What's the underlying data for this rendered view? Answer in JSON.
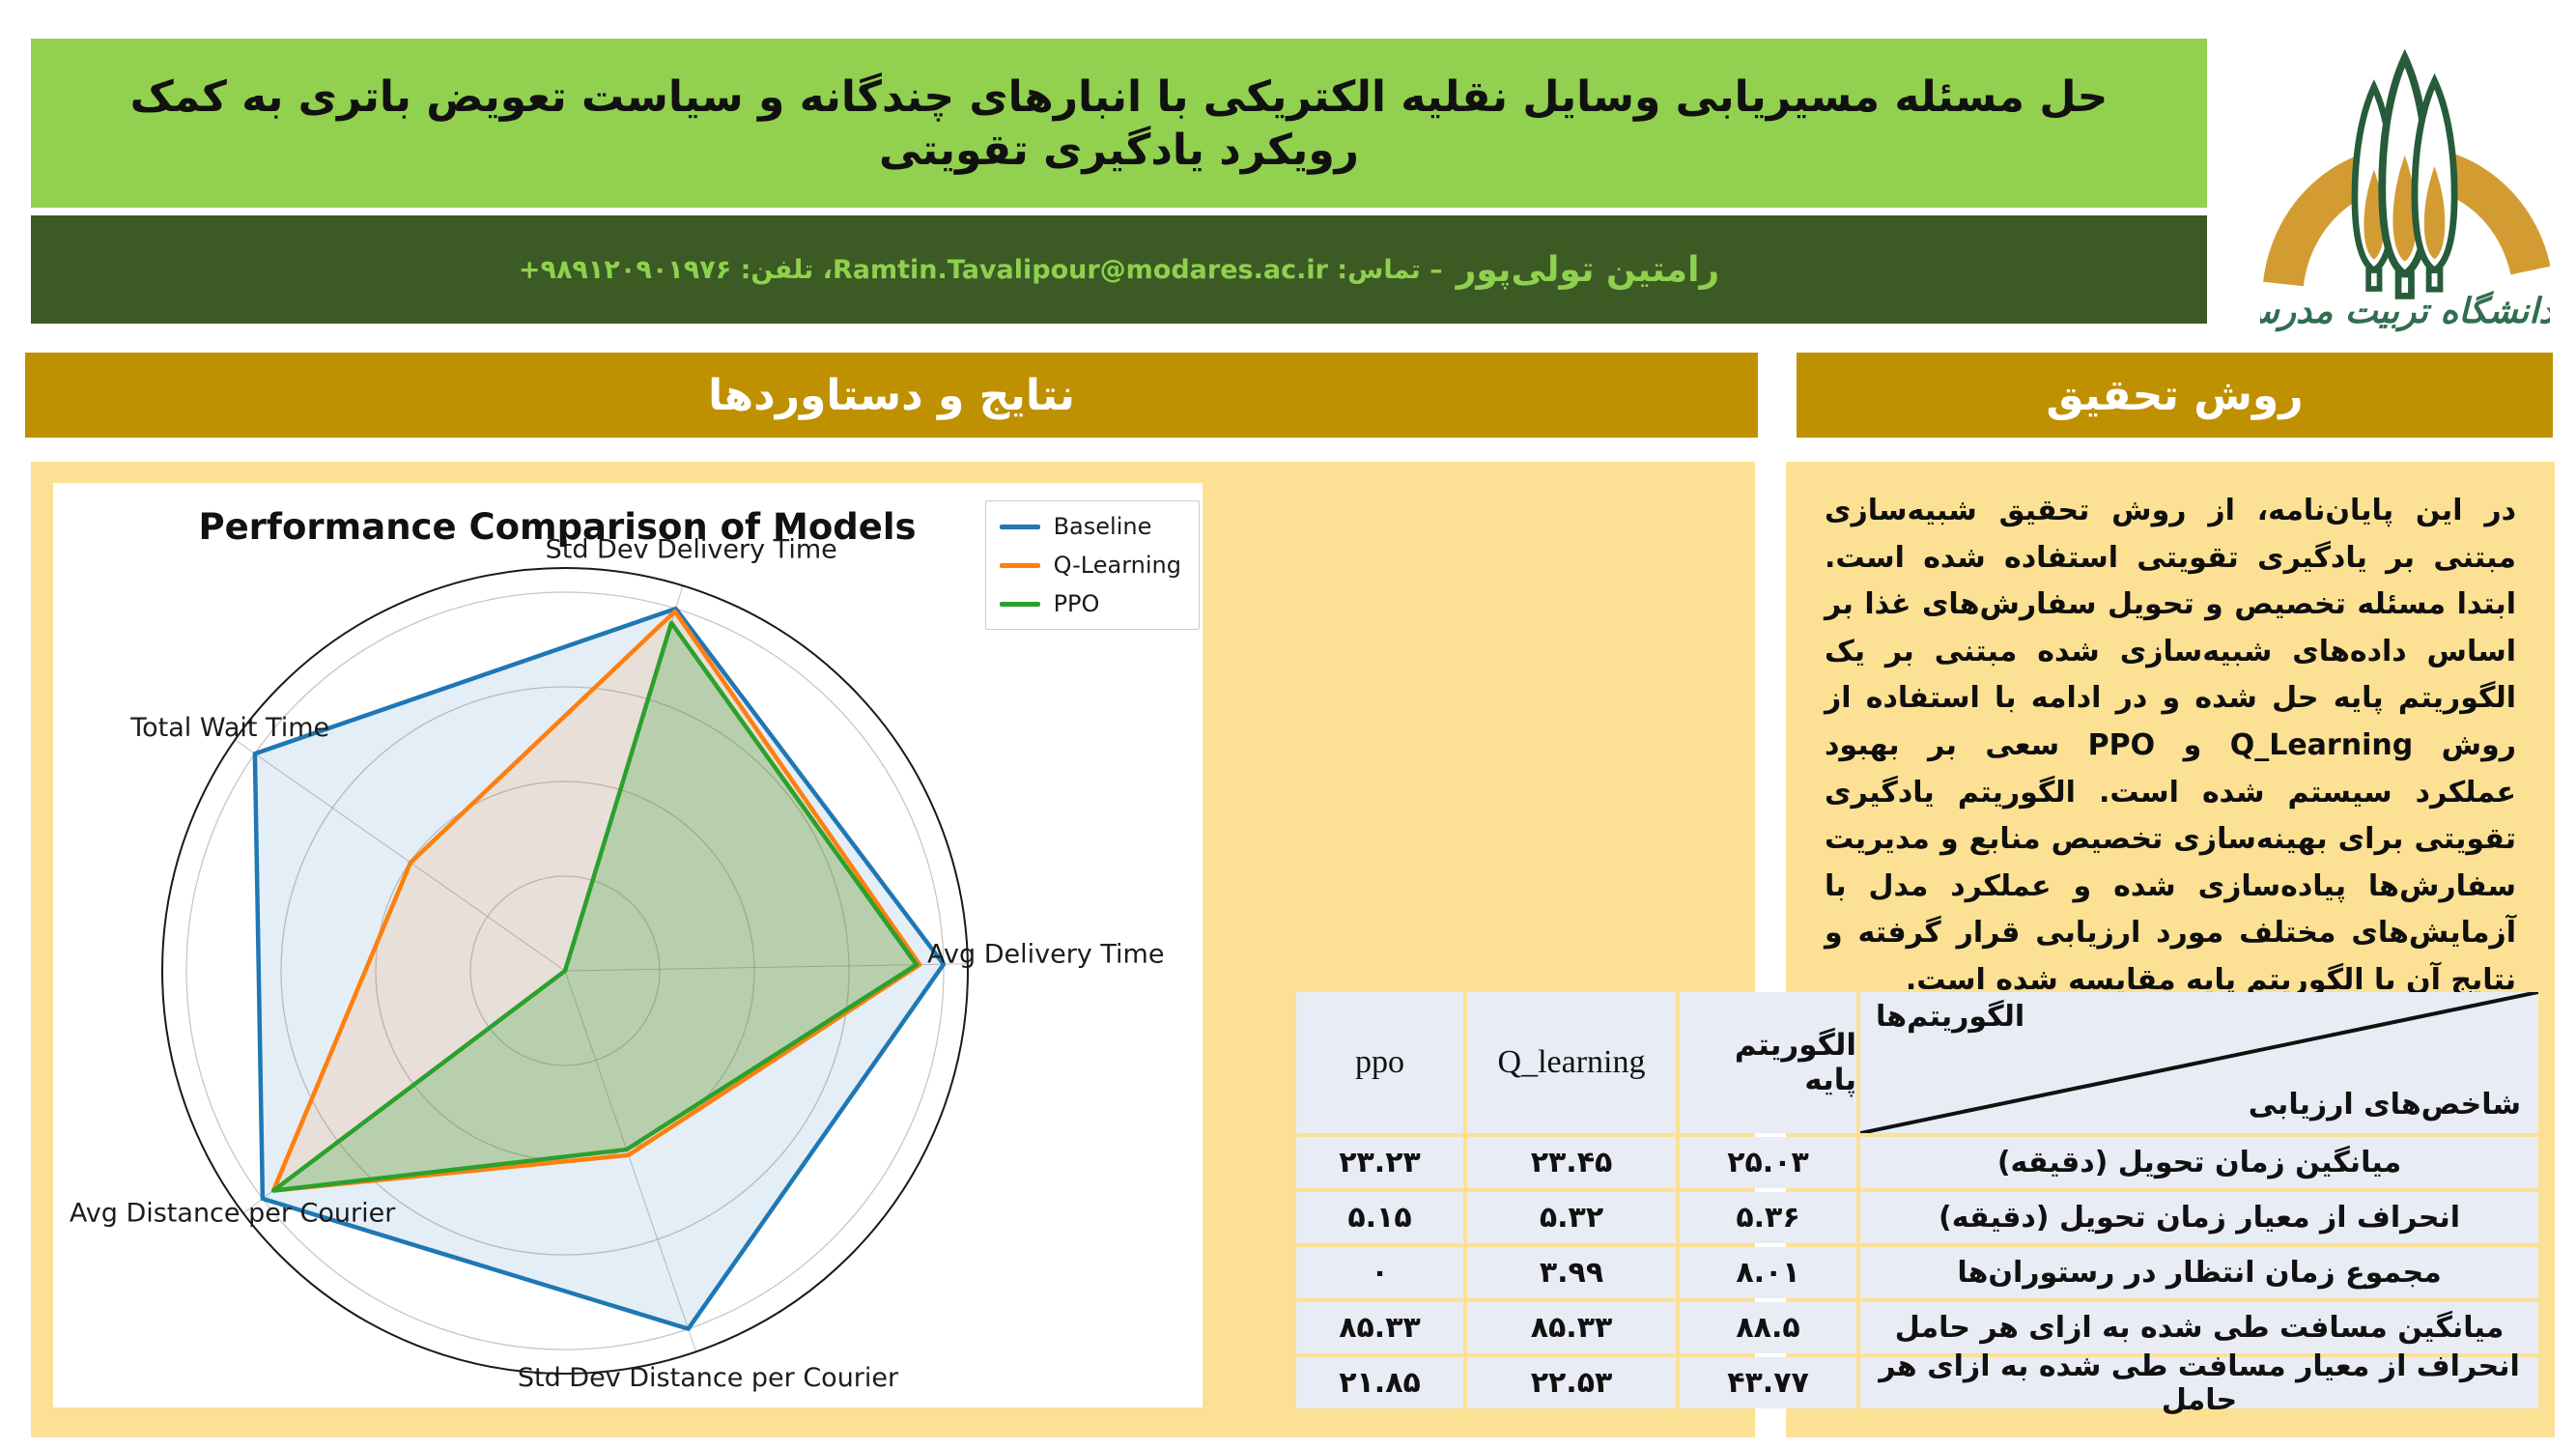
{
  "poster": {
    "title": "حل مسئله مسیریابی وسایل نقلیه الکتریکی با انبارهای چندگانه و سیاست تعویض باتری به کمک رویکرد یادگیری تقویتی",
    "author": {
      "name": "رامتین تولی‌پور",
      "contact": "– تماس: Ramtin.Tavalipour@modares.ac.ir، تلفن: ۹۸۹۱۲۰۹۰۱۹۷۶+"
    },
    "logo_text": "دانشگاه تربیت مدرس",
    "sections": {
      "results": "نتایج و دستاوردها",
      "method": "روش تحقیق"
    },
    "method_text": "در این پایان‌نامه، از روش تحقیق شبیه‌سازی مبتنی بر یادگیری تقویتی استفاده شده است. ابتدا مسئله تخصیص و تحویل سفارش‌های غذا بر اساس داده‌های شبیه‌سازی شده مبتنی بر یک الگوریتم پایه حل شده و در ادامه با استفاده از روش Q_Learning و PPO سعی بر بهبود عملکرد سیستم شده است. الگوریتم یادگیری تقویتی برای بهینه‌سازی تخصیص منابع و مدیریت سفارش‌ها پیاده‌سازی شده و عملکرد مدل با آزمایش‌های مختلف مورد ارزیابی قرار گرفته و نتایج آن با الگوریتم پایه مقایسه شده است."
  },
  "chart_data": {
    "type": "radar",
    "title": "Performance Comparison of Models",
    "axes": [
      "Std Dev Delivery Time",
      "Avg Delivery Time",
      "Std Dev Distance per Courier",
      "Avg Distance per Courier",
      "Total Wait Time"
    ],
    "series": [
      {
        "name": "Baseline",
        "color": "#1f77b4",
        "fill_opacity": 0.12,
        "values": [
          5.36,
          25.03,
          43.77,
          88.5,
          8.01
        ]
      },
      {
        "name": "Q-Learning",
        "color": "#ff7f0e",
        "fill_opacity": 0.13,
        "values": [
          5.32,
          23.45,
          22.53,
          85.33,
          3.99
        ]
      },
      {
        "name": "PPO",
        "color": "#2ca02c",
        "fill_opacity": 0.25,
        "values": [
          5.15,
          23.23,
          21.85,
          85.33,
          0
        ]
      }
    ],
    "normalization": "per-axis max (values plotted as fraction of maximum across models)",
    "grid": true,
    "legend_position": "upper right",
    "layout_hints": {
      "axis_angles_deg": [
        73,
        1,
        289,
        217,
        145
      ],
      "label_radius": [
        1.14,
        1.27,
        1.16,
        1.1,
        1.08
      ],
      "ring_fractions": [
        0.25,
        0.5,
        0.75,
        1.0
      ]
    }
  },
  "table": {
    "corner": {
      "top": "الگوریتم‌ها",
      "bottom": "شاخص‌های ارزیابی"
    },
    "columns": [
      "الگوریتم پایه",
      "Q_learning",
      "ppo"
    ],
    "rows": [
      {
        "label": "میانگین زمان تحویل (دقیقه)",
        "values": [
          "۲۵.۰۳",
          "۲۳.۴۵",
          "۲۳.۲۳"
        ]
      },
      {
        "label": "انحراف از معیار زمان تحویل (دقیقه)",
        "values": [
          "۵.۳۶",
          "۵.۳۲",
          "۵.۱۵"
        ]
      },
      {
        "label": "مجموع زمان انتظار در رستوران‌ها",
        "values": [
          "۸.۰۱",
          "۳.۹۹",
          "۰"
        ]
      },
      {
        "label": "میانگین مسافت طی شده به ازای هر حامل",
        "values": [
          "۸۸.۵",
          "۸۵.۳۳",
          "۸۵.۳۳"
        ]
      },
      {
        "label": "انحراف از معیار مسافت طی شده به ازای هر حامل",
        "values": [
          "۴۳.۷۷",
          "۲۲.۵۳",
          "۲۱.۸۵"
        ]
      }
    ]
  },
  "colors": {
    "title_bar": "#92d050",
    "author_bar": "#3b5a24",
    "author_text": "#8fd14e",
    "section_header": "#bf9000",
    "panel": "#fce194",
    "table_cell": "#e9ecf5",
    "logo_gold": "#d39c33",
    "logo_green": "#265c3a"
  }
}
